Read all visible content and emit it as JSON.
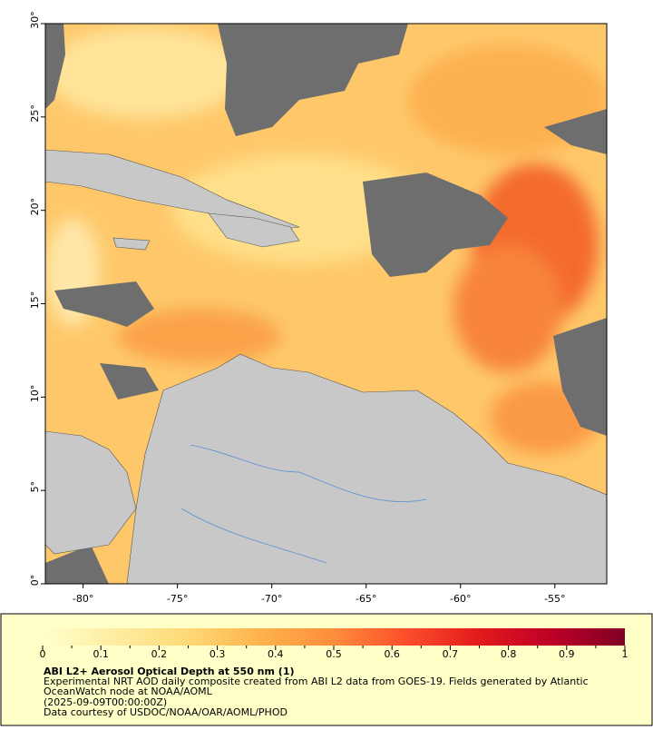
{
  "map": {
    "xlim": [
      -82,
      -52.25
    ],
    "ylim": [
      0,
      30
    ],
    "xticks": [
      {
        "value": -80,
        "label": "-80°"
      },
      {
        "value": -75,
        "label": "-75°"
      },
      {
        "value": -70,
        "label": "-70°"
      },
      {
        "value": -65,
        "label": "-65°"
      },
      {
        "value": -60,
        "label": "-60°"
      },
      {
        "value": -55,
        "label": "-55°"
      }
    ],
    "yticks": [
      {
        "value": 0,
        "label": "0°"
      },
      {
        "value": 5,
        "label": "5°"
      },
      {
        "value": 10,
        "label": "10°"
      },
      {
        "value": 15,
        "label": "15°"
      },
      {
        "value": 20,
        "label": "20°"
      },
      {
        "value": 25,
        "label": "25°"
      },
      {
        "value": 30,
        "label": "30°"
      }
    ]
  },
  "colorbar": {
    "range": [
      0,
      1
    ],
    "ticks": [
      0,
      0.1,
      0.2,
      0.3,
      0.4,
      0.5,
      0.6,
      0.7,
      0.8,
      0.9,
      1
    ],
    "colors": [
      "#ffffcc",
      "#ffeda0",
      "#fed976",
      "#feb24c",
      "#fd8d3c",
      "#fc4e2a",
      "#e31a1c",
      "#bd0026",
      "#800026"
    ]
  },
  "caption": {
    "title": "ABI L2+ Aerosol Optical Depth at 550 nm (1)",
    "description": "Experimental NRT AOD daily composite created from ABI L2 data from GOES-19. Fields generated by Atlantic OceanWatch node at NOAA/AOML",
    "date": "(2025-09-09T00:00:00Z)",
    "credit": "Data courtesy of USDOC/NOAA/OAR/AOML/PHOD"
  }
}
